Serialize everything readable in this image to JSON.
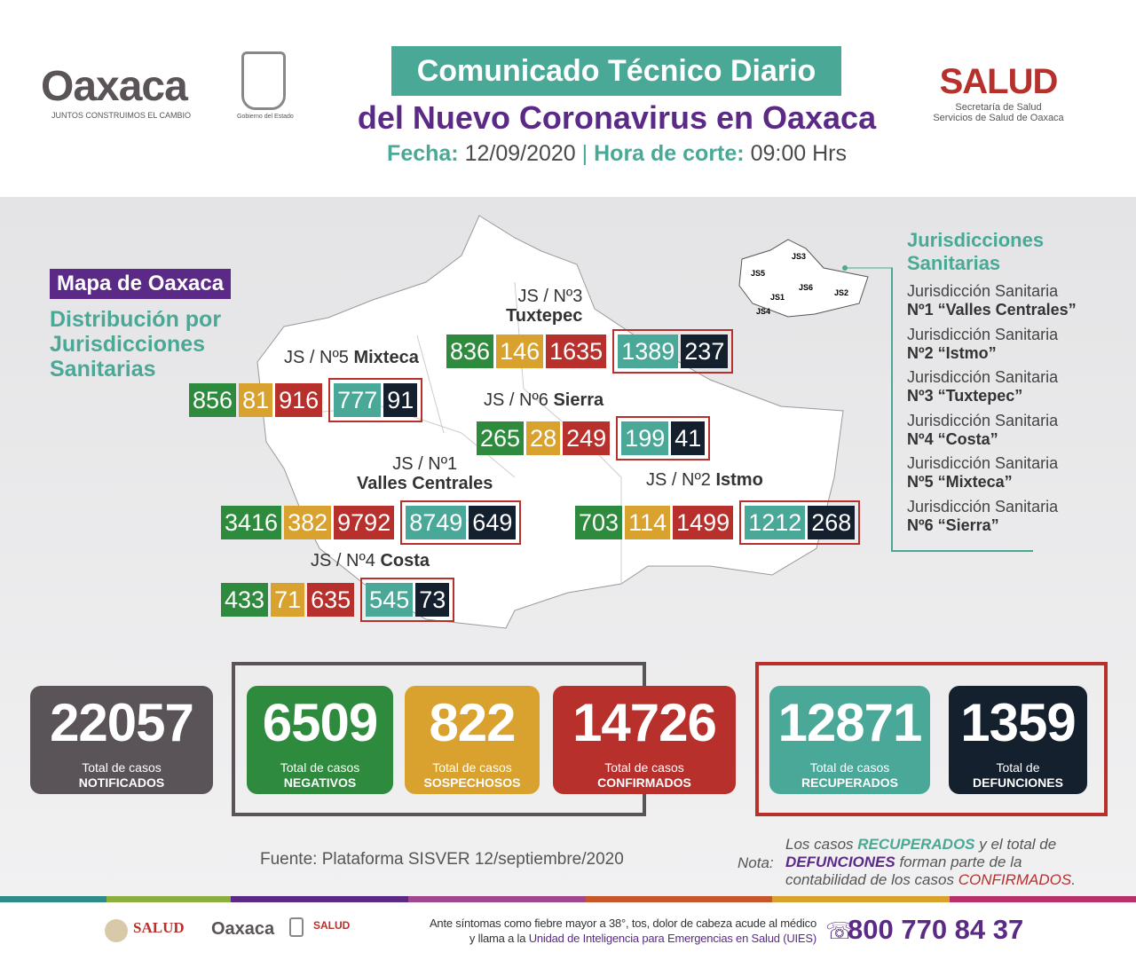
{
  "header": {
    "logo_text": "Oaxaca",
    "logo_tagline": "JUNTOS CONSTRUIMOS EL CAMBIO",
    "gobierno": "Gobierno del Estado",
    "title_line1": "Comunicado Técnico Diario",
    "title_line2": "del Nuevo Coronavirus en Oaxaca",
    "fecha_label": "Fecha:",
    "fecha": "12/09/2020",
    "hora_label": "Hora de corte:",
    "hora": "09:00 Hrs",
    "salud": "SALUD",
    "salud_sub1": "Secretaría de Salud",
    "salud_sub2": "Servicios de Salud de Oaxaca"
  },
  "map": {
    "badge": "Mapa de Oaxaca",
    "subtitle": "Distribución por Jurisdicciones Sanitarias",
    "regions": [
      {
        "label": "JS / Nº5",
        "name": "Mixteca",
        "values": [
          856,
          81,
          916,
          777,
          91
        ]
      },
      {
        "label": "JS / Nº3",
        "name": "Tuxtepec",
        "values": [
          836,
          146,
          1635,
          1389,
          237
        ]
      },
      {
        "label": "JS / Nº6",
        "name": "Sierra",
        "values": [
          265,
          28,
          249,
          199,
          41
        ]
      },
      {
        "label": "JS / Nº1",
        "name": "Valles Centrales",
        "values": [
          3416,
          382,
          9792,
          8749,
          649
        ]
      },
      {
        "label": "JS / Nº2",
        "name": "Istmo",
        "values": [
          703,
          114,
          1499,
          1212,
          268
        ]
      },
      {
        "label": "JS / Nº4",
        "name": "Costa",
        "values": [
          433,
          71,
          635,
          545,
          73
        ]
      }
    ],
    "mini_labels": [
      "JS3",
      "JS5",
      "JS6",
      "JS1",
      "JS2",
      "JS4"
    ]
  },
  "legend": {
    "title": "Jurisdicciones Sanitarias",
    "items": [
      {
        "l1": "Jurisdicción Sanitaria",
        "l2": "Nº1 “Valles Centrales”"
      },
      {
        "l1": "Jurisdicción Sanitaria",
        "l2": "Nº2 “Istmo”"
      },
      {
        "l1": "Jurisdicción Sanitaria",
        "l2": "Nº3 “Tuxtepec”"
      },
      {
        "l1": "Jurisdicción Sanitaria",
        "l2": "Nº4 “Costa”"
      },
      {
        "l1": "Jurisdicción Sanitaria",
        "l2": "Nº5 “Mixteca”"
      },
      {
        "l1": "Jurisdicción Sanitaria",
        "l2": "Nº6 “Sierra”"
      }
    ]
  },
  "totals": [
    {
      "value": "22057",
      "l1": "Total de casos",
      "l2": "NOTIFICADOS",
      "color": "#5a5358"
    },
    {
      "value": "6509",
      "l1": "Total de casos",
      "l2": "NEGATIVOS",
      "color": "#2e8b3e"
    },
    {
      "value": "822",
      "l1": "Total de casos",
      "l2": "SOSPECHOSOS",
      "color": "#d9a22e"
    },
    {
      "value": "14726",
      "l1": "Total de casos",
      "l2": "CONFIRMADOS",
      "color": "#b8302c"
    },
    {
      "value": "12871",
      "l1": "Total de casos",
      "l2": "RECUPERADOS",
      "color": "#4aa898"
    },
    {
      "value": "1359",
      "l1": "Total de",
      "l2": "DEFUNCIONES",
      "color": "#14202e"
    }
  ],
  "source": "Fuente: Plataforma SISVER 12/septiembre/2020",
  "note": {
    "label": "Nota:",
    "p1": "Los casos ",
    "k1": "RECUPERADOS",
    "p2": " y el total de",
    "k2": "DEFUNCIONES",
    "p3": " forman parte de la",
    "p4": "contabilidad de los casos ",
    "k3": "CONFIRMADOS",
    "p5": "."
  },
  "footer": {
    "salud": "SALUD",
    "line1": "Ante síntomas como fiebre mayor a 38°, tos, dolor de cabeza acude al médico",
    "line2a": "y llama a la ",
    "line2b": "Unidad de Inteligencia para Emergencias en Salud (UIES)",
    "phone": "800 770 84 37"
  }
}
